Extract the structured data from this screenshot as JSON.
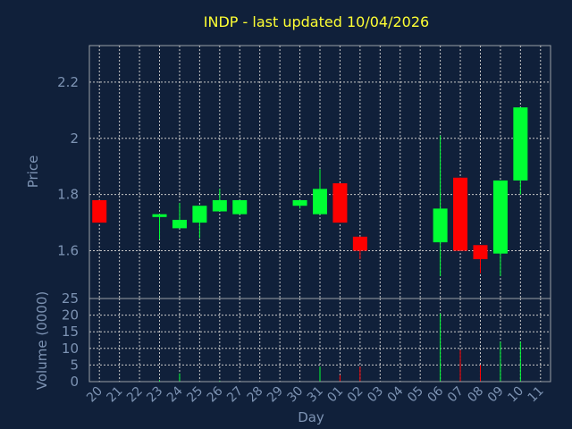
{
  "chart_data": {
    "type": "candlestick",
    "title": "INDP - last updated 10/04/2026",
    "xlabel": "Day",
    "colors": {
      "background": "#10203a",
      "up": "#00ff33",
      "down": "#ff0000",
      "title": "#ffff33",
      "axis_text": "#7d93b3",
      "grid": "#c8c8c8"
    },
    "days": [
      "20",
      "21",
      "22",
      "23",
      "24",
      "25",
      "26",
      "27",
      "28",
      "29",
      "30",
      "31",
      "01",
      "02",
      "03",
      "04",
      "05",
      "06",
      "07",
      "08",
      "09",
      "10",
      "11"
    ],
    "price_panel": {
      "ylabel": "Price",
      "ylim": [
        1.43,
        2.33
      ],
      "yticks": [
        1.6,
        1.8,
        2,
        2.2
      ],
      "ytick_labels": [
        "1.6",
        "1.8",
        "2",
        "2.2"
      ],
      "grid": true
    },
    "volume_panel": {
      "ylabel": "Volume (0000)",
      "ylim": [
        0,
        25
      ],
      "yticks": [
        0,
        5,
        10,
        15,
        20,
        25
      ],
      "ytick_labels": [
        "0",
        "5",
        "10",
        "15",
        "20",
        "25"
      ],
      "grid": true
    },
    "candles": [
      {
        "day": "20",
        "open": 1.78,
        "high": 1.78,
        "low": 1.7,
        "close": 1.7
      },
      {
        "day": "23",
        "open": 1.72,
        "high": 1.73,
        "low": 1.64,
        "close": 1.73
      },
      {
        "day": "24",
        "open": 1.68,
        "high": 1.77,
        "low": 1.68,
        "close": 1.71
      },
      {
        "day": "25",
        "open": 1.7,
        "high": 1.76,
        "low": 1.645,
        "close": 1.76
      },
      {
        "day": "26",
        "open": 1.74,
        "high": 1.82,
        "low": 1.74,
        "close": 1.78
      },
      {
        "day": "27",
        "open": 1.73,
        "high": 1.78,
        "low": 1.73,
        "close": 1.78
      },
      {
        "day": "30",
        "open": 1.76,
        "high": 1.78,
        "low": 1.75,
        "close": 1.78
      },
      {
        "day": "31",
        "open": 1.73,
        "high": 1.89,
        "low": 1.73,
        "close": 1.82
      },
      {
        "day": "01",
        "open": 1.84,
        "high": 1.84,
        "low": 1.7,
        "close": 1.7
      },
      {
        "day": "02",
        "open": 1.65,
        "high": 1.65,
        "low": 1.57,
        "close": 1.6
      },
      {
        "day": "06",
        "open": 1.63,
        "high": 2.01,
        "low": 1.51,
        "close": 1.75
      },
      {
        "day": "07",
        "open": 1.86,
        "high": 1.86,
        "low": 1.6,
        "close": 1.6
      },
      {
        "day": "08",
        "open": 1.62,
        "high": 1.62,
        "low": 1.52,
        "close": 1.57
      },
      {
        "day": "09",
        "open": 1.59,
        "high": 1.85,
        "low": 1.51,
        "close": 1.85
      },
      {
        "day": "10",
        "open": 1.85,
        "high": 2.11,
        "low": 1.8,
        "close": 2.11
      }
    ],
    "volumes": [
      {
        "day": "23",
        "value": 0.5,
        "dir": "up"
      },
      {
        "day": "24",
        "value": 2.5,
        "dir": "up"
      },
      {
        "day": "26",
        "value": 0.3,
        "dir": "up"
      },
      {
        "day": "31",
        "value": 4.5,
        "dir": "up"
      },
      {
        "day": "01",
        "value": 2.0,
        "dir": "down"
      },
      {
        "day": "02",
        "value": 4.5,
        "dir": "down"
      },
      {
        "day": "06",
        "value": 20.5,
        "dir": "up"
      },
      {
        "day": "07",
        "value": 9.5,
        "dir": "down"
      },
      {
        "day": "08",
        "value": 5.0,
        "dir": "down"
      },
      {
        "day": "09",
        "value": 12.0,
        "dir": "up"
      },
      {
        "day": "10",
        "value": 12.0,
        "dir": "up"
      }
    ]
  }
}
